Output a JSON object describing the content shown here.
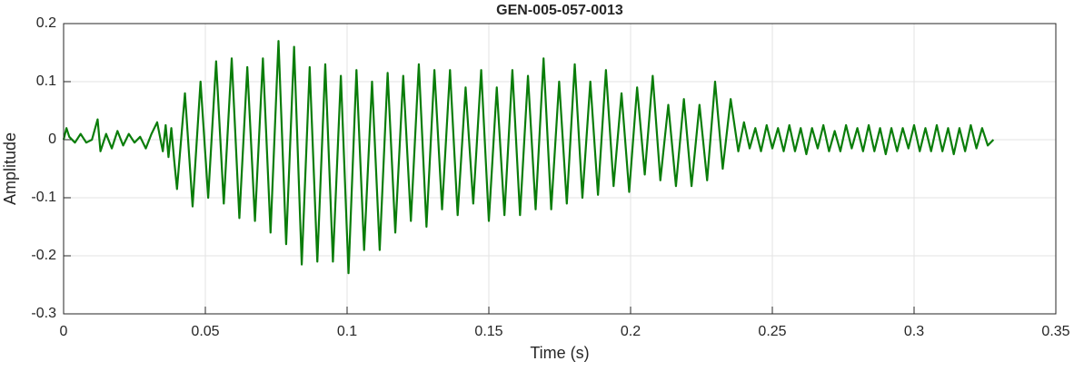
{
  "chart_data": {
    "type": "line",
    "title": "GEN-005-057-0013",
    "xlabel": "Time (s)",
    "ylabel": "Amplitude",
    "xlim": [
      0,
      0.35
    ],
    "ylim": [
      -0.3,
      0.2
    ],
    "xticks": [
      0,
      0.05,
      0.1,
      0.15,
      0.2,
      0.25,
      0.3,
      0.35
    ],
    "yticks": [
      -0.3,
      -0.2,
      -0.1,
      0,
      0.1,
      0.2
    ],
    "grid": true,
    "series": [
      {
        "color": "#0a7d0a",
        "x": [
          0,
          0.001,
          0.002,
          0.004,
          0.006,
          0.008,
          0.01,
          0.012,
          0.013,
          0.015,
          0.017,
          0.019,
          0.021,
          0.023,
          0.025,
          0.027,
          0.029,
          0.031,
          0.033,
          0.035,
          0.036,
          0.037,
          0.038,
          0.039,
          0.04,
          0.0428,
          0.0455,
          0.0483,
          0.051,
          0.0538,
          0.0565,
          0.0593,
          0.062,
          0.0648,
          0.0675,
          0.0703,
          0.073,
          0.0758,
          0.0785,
          0.0813,
          0.084,
          0.0868,
          0.0895,
          0.0923,
          0.095,
          0.0978,
          0.1005,
          0.1033,
          0.106,
          0.1088,
          0.1115,
          0.1143,
          0.117,
          0.1198,
          0.1225,
          0.1253,
          0.128,
          0.1308,
          0.1335,
          0.1363,
          0.139,
          0.1418,
          0.1445,
          0.1473,
          0.15,
          0.1528,
          0.1555,
          0.1583,
          0.161,
          0.1638,
          0.1665,
          0.1693,
          0.172,
          0.1748,
          0.1775,
          0.1803,
          0.183,
          0.1858,
          0.1885,
          0.1913,
          0.194,
          0.1968,
          0.1995,
          0.2023,
          0.205,
          0.2078,
          0.2105,
          0.2133,
          0.216,
          0.2188,
          0.2215,
          0.2243,
          0.227,
          0.2298,
          0.2325,
          0.2353,
          0.238,
          0.24,
          0.242,
          0.244,
          0.246,
          0.248,
          0.25,
          0.252,
          0.254,
          0.256,
          0.258,
          0.26,
          0.262,
          0.264,
          0.266,
          0.268,
          0.27,
          0.272,
          0.274,
          0.276,
          0.278,
          0.28,
          0.282,
          0.284,
          0.286,
          0.288,
          0.29,
          0.292,
          0.294,
          0.296,
          0.298,
          0.3,
          0.302,
          0.304,
          0.306,
          0.308,
          0.31,
          0.312,
          0.314,
          0.316,
          0.318,
          0.32,
          0.322,
          0.324,
          0.326,
          0.328
        ],
        "values": [
          0,
          0.02,
          0.005,
          -0.005,
          0.01,
          -0.005,
          0,
          0.035,
          -0.02,
          0.01,
          -0.015,
          0.015,
          -0.01,
          0.01,
          -0.005,
          0.005,
          -0.015,
          0.01,
          0.03,
          -0.02,
          0.025,
          -0.03,
          0.02,
          -0.035,
          -0.085,
          0.08,
          -0.115,
          0.1,
          -0.1,
          0.135,
          -0.11,
          0.14,
          -0.135,
          0.125,
          -0.14,
          0.14,
          -0.16,
          0.17,
          -0.18,
          0.16,
          -0.215,
          0.125,
          -0.21,
          0.13,
          -0.21,
          0.11,
          -0.23,
          0.12,
          -0.19,
          0.1,
          -0.19,
          0.115,
          -0.16,
          0.11,
          -0.14,
          0.13,
          -0.15,
          0.12,
          -0.12,
          0.12,
          -0.13,
          0.09,
          -0.11,
          0.12,
          -0.14,
          0.09,
          -0.13,
          0.12,
          -0.13,
          0.11,
          -0.12,
          0.14,
          -0.12,
          0.1,
          -0.11,
          0.13,
          -0.1,
          0.1,
          -0.095,
          0.12,
          -0.08,
          0.08,
          -0.09,
          0.09,
          -0.06,
          0.11,
          -0.07,
          0.06,
          -0.08,
          0.07,
          -0.08,
          0.06,
          -0.07,
          0.1,
          -0.05,
          0.07,
          -0.02,
          0.03,
          -0.015,
          0.02,
          -0.02,
          0.025,
          -0.015,
          0.02,
          -0.02,
          0.025,
          -0.02,
          0.02,
          -0.025,
          0.02,
          -0.015,
          0.025,
          -0.02,
          0.015,
          -0.02,
          0.025,
          -0.015,
          0.02,
          -0.02,
          0.025,
          -0.02,
          0.02,
          -0.025,
          0.02,
          -0.02,
          0.02,
          -0.015,
          0.025,
          -0.02,
          0.02,
          -0.02,
          0.025,
          -0.02,
          0.02,
          -0.025,
          0.02,
          -0.02,
          0.025,
          -0.015,
          0.02,
          -0.01,
          0
        ]
      }
    ]
  }
}
